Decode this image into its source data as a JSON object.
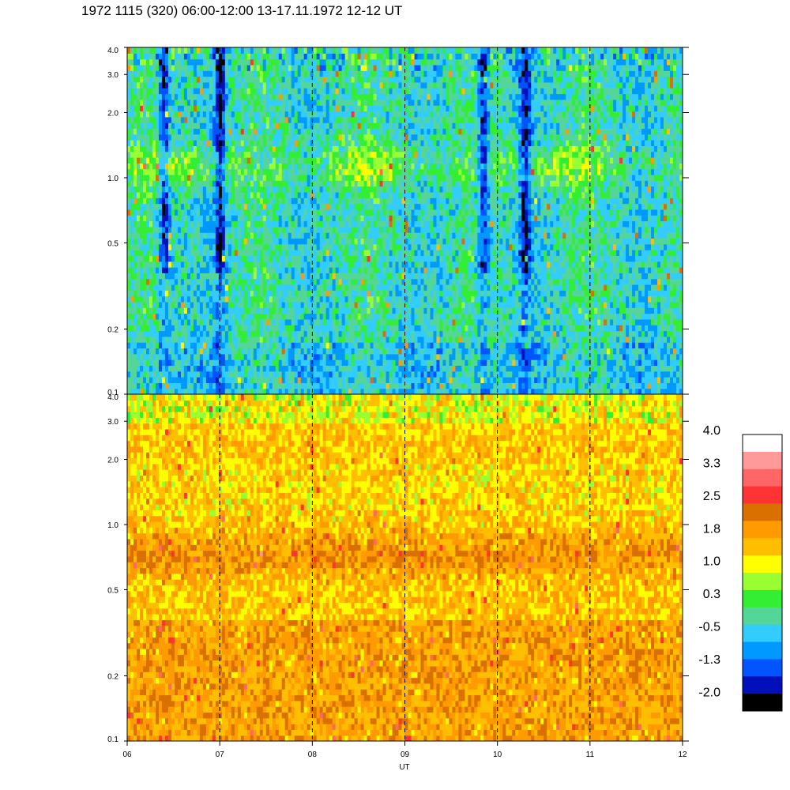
{
  "title": "1972 1115 (320) 06:00-12:00 13-17.11.1972  12-12 UT",
  "chart_data": {
    "type": "heatmap",
    "xlabel": "UT",
    "x_ticks": [
      "06",
      "07",
      "08",
      "09",
      "10",
      "11",
      "12"
    ],
    "x_range": [
      6,
      12
    ],
    "dashed_vlines": [
      7,
      8,
      9,
      10,
      11
    ],
    "panels": [
      {
        "name": "upper",
        "y_scale": "log",
        "ylim": [
          0.1,
          4.0
        ],
        "y_ticks": [
          {
            "value": 0.1,
            "label": "0.1"
          },
          {
            "value": 0.2,
            "label": "0.2"
          },
          {
            "value": 0.5,
            "label": "0.5"
          },
          {
            "value": 1.0,
            "label": "1.0"
          },
          {
            "value": 2.0,
            "label": "2.0"
          },
          {
            "value": 3.0,
            "label": "3.0"
          },
          {
            "value": 4.0,
            "label": "4.0"
          }
        ],
        "typical_level": "low (about -0.5 to 0.3), with deep dips near 06:25, 07:00, 09:50, 10:20"
      },
      {
        "name": "lower",
        "y_scale": "log",
        "ylim": [
          0.1,
          4.0
        ],
        "y_ticks": [
          {
            "value": 0.1,
            "label": "0.1"
          },
          {
            "value": 0.2,
            "label": "0.2"
          },
          {
            "value": 0.5,
            "label": "0.5"
          },
          {
            "value": 1.0,
            "label": "1.0"
          },
          {
            "value": 2.0,
            "label": "2.0"
          },
          {
            "value": 3.0,
            "label": "3.0"
          },
          {
            "value": 4.0,
            "label": "4.0"
          }
        ],
        "typical_level": "high (about 1.0 to 2.5), brighter band near 0.7-1.0"
      }
    ],
    "colorbar": {
      "tick_labels": [
        "4.0",
        "3.3",
        "2.5",
        "1.8",
        "1.0",
        "0.3",
        "-0.5",
        "-1.3",
        "-2.0"
      ],
      "range": [
        -2.0,
        4.0
      ],
      "colors": [
        "#ffffff",
        "#ff9a9a",
        "#ff6666",
        "#ff3333",
        "#d97000",
        "#ff9a00",
        "#ffbf00",
        "#ffff00",
        "#99ff33",
        "#33ee33",
        "#55d699",
        "#33ccff",
        "#0099ff",
        "#0055ff",
        "#0011bb",
        "#000000"
      ]
    }
  }
}
